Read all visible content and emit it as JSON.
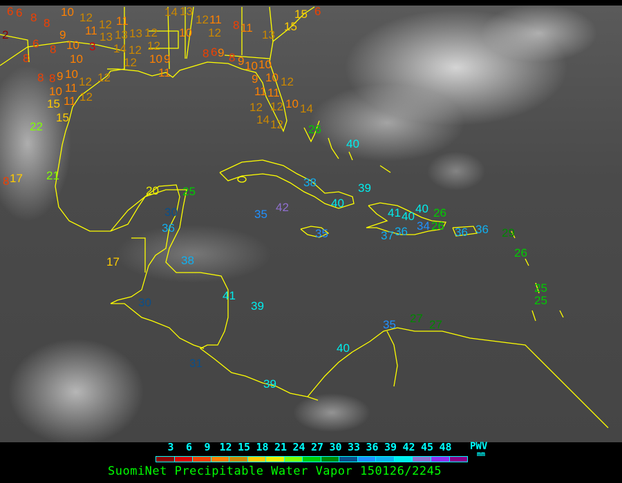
{
  "title": "SuomiNet Precipitable Water Vapor 150126/2245",
  "legend": {
    "unit_label": "PWV",
    "unit": "mm",
    "ticks": [
      "3",
      "6",
      "9",
      "12",
      "15",
      "18",
      "21",
      "24",
      "27",
      "30",
      "33",
      "36",
      "39",
      "42",
      "45",
      "48"
    ],
    "colors": [
      "#8b0000",
      "#d80000",
      "#f04000",
      "#ff8000",
      "#cc8800",
      "#ffcc00",
      "#eeee00",
      "#80ff00",
      "#00cc00",
      "#008800",
      "#0a4f8a",
      "#2090ff",
      "#10b0f0",
      "#00eeee",
      "#9070d0",
      "#9030f0",
      "#880088"
    ]
  },
  "map": {
    "coastline_color": "#ffff00",
    "stations": [
      "6",
      "6",
      "8",
      "8",
      "2",
      "9",
      "6",
      "8",
      "8",
      "10",
      "3",
      "10",
      "8",
      "8",
      "9",
      "10",
      "12",
      "10",
      "11",
      "15",
      "11",
      "12",
      "15",
      "22",
      "12",
      "10",
      "12",
      "11",
      "12",
      "13",
      "13",
      "11",
      "13",
      "12",
      "12",
      "14",
      "12",
      "12",
      "10",
      "9",
      "14",
      "13",
      "12",
      "11",
      "10",
      "12",
      "8",
      "11",
      "13",
      "15",
      "15",
      "6",
      "8",
      "6",
      "9",
      "8",
      "9",
      "10",
      "10",
      "9",
      "10",
      "12",
      "11",
      "11",
      "12",
      "10",
      "12",
      "14",
      "12",
      "14",
      "11",
      "26",
      "40",
      "38",
      "39",
      "40",
      "42",
      "35",
      "35",
      "41",
      "40",
      "40",
      "36",
      "37",
      "34",
      "26",
      "26",
      "36",
      "36",
      "29",
      "26",
      "25",
      "25",
      "27",
      "27",
      "35",
      "40",
      "39",
      "41",
      "38",
      "30",
      "31",
      "39",
      "36",
      "30",
      "25",
      "20",
      "17",
      "21",
      "17",
      "8"
    ]
  }
}
